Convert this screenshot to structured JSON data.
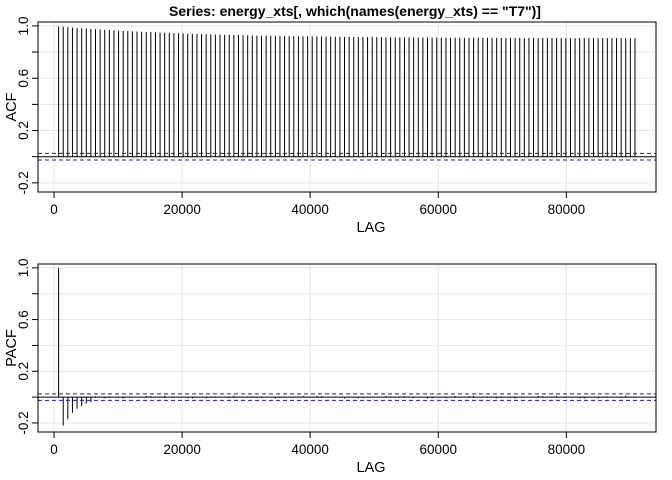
{
  "chart_data": [
    {
      "type": "bar",
      "subtype": "acf-spikes",
      "title": "Series:  energy_xts[, which(names(energy_xts) == \"T7\")]",
      "xlabel": "LAG",
      "ylabel": "ACF",
      "xlim": [
        -2500,
        94000
      ],
      "ylim": [
        -0.27,
        1.03
      ],
      "xticks": [
        0,
        20000,
        40000,
        60000,
        80000
      ],
      "xtick_labels": [
        "0",
        "20000",
        "40000",
        "60000",
        "80000"
      ],
      "yticks": [
        -0.2,
        0.2,
        0.6,
        1.0
      ],
      "ytick_labels": [
        "-0.2",
        "0.2",
        "0.6",
        "1.0"
      ],
      "grid": true,
      "ci": 0.025,
      "lag_step": 720,
      "lag_max": 90720,
      "values_start": 1.0,
      "values_end": 0.895,
      "values_mid": 0.91
    },
    {
      "type": "bar",
      "subtype": "pacf-spikes",
      "title": "",
      "xlabel": "LAG",
      "ylabel": "PACF",
      "xlim": [
        -2500,
        94000
      ],
      "ylim": [
        -0.27,
        1.03
      ],
      "xticks": [
        0,
        20000,
        40000,
        60000,
        80000
      ],
      "xtick_labels": [
        "0",
        "20000",
        "40000",
        "60000",
        "80000"
      ],
      "yticks": [
        -0.2,
        0.2,
        0.6,
        1.0
      ],
      "ytick_labels": [
        "-0.2",
        "0.2",
        "0.6",
        "1.0"
      ],
      "grid": true,
      "ci": 0.025,
      "lag_step": 720,
      "lag_max": 90720,
      "first_values": [
        1.0,
        -0.22,
        -0.17,
        -0.12,
        -0.09,
        -0.07,
        -0.05,
        -0.04
      ]
    }
  ]
}
